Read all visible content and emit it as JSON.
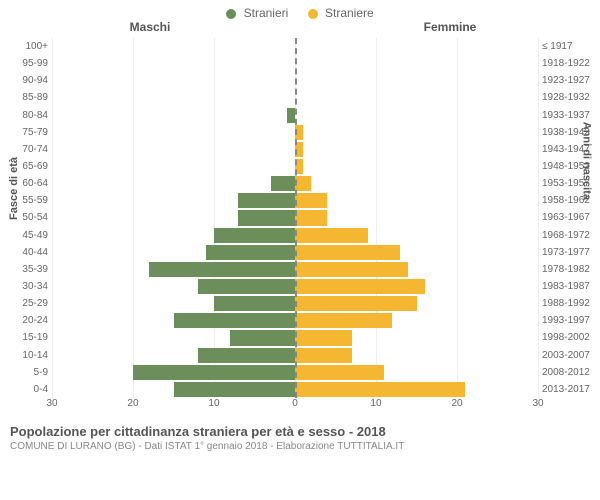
{
  "legend": {
    "male": {
      "label": "Stranieri",
      "color": "#6b8e5a"
    },
    "female": {
      "label": "Straniere",
      "color": "#f5b731"
    }
  },
  "headers": {
    "left": "Maschi",
    "right": "Femmine"
  },
  "axis_titles": {
    "left": "Fasce di età",
    "right": "Anni di nascita"
  },
  "x_axis": {
    "max": 30,
    "ticks": [
      30,
      20,
      10,
      0,
      10,
      20,
      30
    ]
  },
  "age_groups": [
    {
      "age": "100+",
      "birth": "≤ 1917",
      "male": 0,
      "female": 0
    },
    {
      "age": "95-99",
      "birth": "1918-1922",
      "male": 0,
      "female": 0
    },
    {
      "age": "90-94",
      "birth": "1923-1927",
      "male": 0,
      "female": 0
    },
    {
      "age": "85-89",
      "birth": "1928-1932",
      "male": 0,
      "female": 0
    },
    {
      "age": "80-84",
      "birth": "1933-1937",
      "male": 1,
      "female": 0
    },
    {
      "age": "75-79",
      "birth": "1938-1942",
      "male": 0,
      "female": 1
    },
    {
      "age": "70-74",
      "birth": "1943-1947",
      "male": 0,
      "female": 1
    },
    {
      "age": "65-69",
      "birth": "1948-1952",
      "male": 0,
      "female": 1
    },
    {
      "age": "60-64",
      "birth": "1953-1957",
      "male": 3,
      "female": 2
    },
    {
      "age": "55-59",
      "birth": "1958-1962",
      "male": 7,
      "female": 4
    },
    {
      "age": "50-54",
      "birth": "1963-1967",
      "male": 7,
      "female": 4
    },
    {
      "age": "45-49",
      "birth": "1968-1972",
      "male": 10,
      "female": 9
    },
    {
      "age": "40-44",
      "birth": "1973-1977",
      "male": 11,
      "female": 13
    },
    {
      "age": "35-39",
      "birth": "1978-1982",
      "male": 18,
      "female": 14
    },
    {
      "age": "30-34",
      "birth": "1983-1987",
      "male": 12,
      "female": 16
    },
    {
      "age": "25-29",
      "birth": "1988-1992",
      "male": 10,
      "female": 15
    },
    {
      "age": "20-24",
      "birth": "1993-1997",
      "male": 15,
      "female": 12
    },
    {
      "age": "15-19",
      "birth": "1998-2002",
      "male": 8,
      "female": 7
    },
    {
      "age": "10-14",
      "birth": "2003-2007",
      "male": 12,
      "female": 7
    },
    {
      "age": "5-9",
      "birth": "2008-2012",
      "male": 20,
      "female": 11
    },
    {
      "age": "0-4",
      "birth": "2013-2017",
      "male": 15,
      "female": 21
    }
  ],
  "footer": {
    "title": "Popolazione per cittadinanza straniera per età e sesso - 2018",
    "subtitle": "COMUNE DI LURANO (BG) - Dati ISTAT 1° gennaio 2018 - Elaborazione TUTTITALIA.IT"
  },
  "style": {
    "background": "#ffffff",
    "grid_color": "#eeeeee",
    "center_line_color": "#888888",
    "text_color": "#666666"
  }
}
